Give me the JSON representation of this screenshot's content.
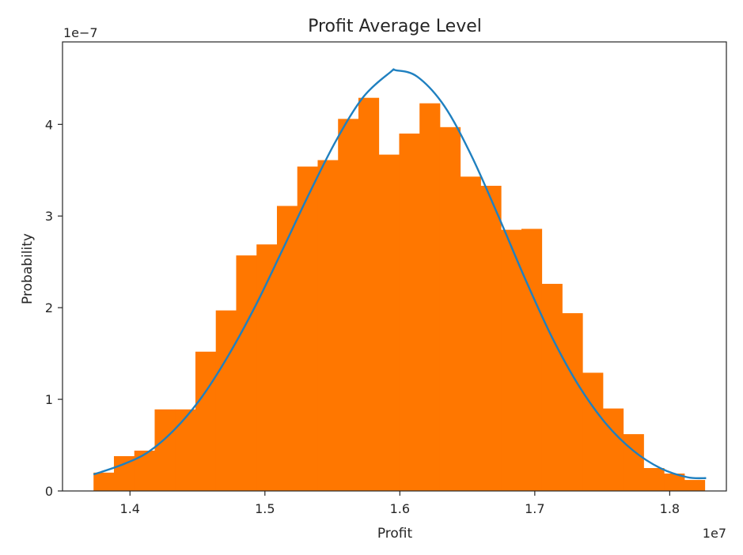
{
  "chart_data": {
    "type": "bar",
    "title": "Profit Average Level",
    "xlabel": "Profit",
    "ylabel": "Probability",
    "x_offset_label": "1e7",
    "y_offset_label": "1e−7",
    "x_scale": 10000000,
    "y_scale": 1e-07,
    "xlim": [
      13500000,
      18420000
    ],
    "ylim": [
      0,
      4.9e-07
    ],
    "x_ticks": [
      14000000,
      15000000,
      16000000,
      17000000,
      18000000
    ],
    "x_tick_labels": [
      "1.4",
      "1.5",
      "1.6",
      "1.7",
      "1.8"
    ],
    "y_ticks": [
      0,
      1e-07,
      2e-07,
      3e-07,
      4e-07
    ],
    "y_tick_labels": [
      "0",
      "1",
      "2",
      "3",
      "4"
    ],
    "grid": false,
    "series": [
      {
        "kind": "histogram",
        "color": "#ff7700",
        "bin_edges": [
          13730000,
          13881000,
          14032000,
          14183000,
          14334000,
          14485000,
          14636000,
          14787000,
          14938000,
          15089000,
          15240000,
          15391000,
          15542000,
          15693000,
          15844000,
          15995000,
          16146000,
          16297000,
          16448000,
          16599000,
          16750000,
          16901000,
          17052000,
          17203000,
          17354000,
          17505000,
          17656000,
          17807000,
          17958000,
          18109000,
          18260000
        ],
        "values": [
          2e-08,
          3.8e-08,
          4.4e-08,
          8.9e-08,
          8.9e-08,
          1.52e-07,
          1.97e-07,
          2.57e-07,
          2.69e-07,
          3.11e-07,
          3.54e-07,
          3.61e-07,
          4.06e-07,
          4.29e-07,
          3.67e-07,
          3.9e-07,
          4.23e-07,
          3.97e-07,
          3.43e-07,
          3.33e-07,
          2.85e-07,
          2.86e-07,
          2.26e-07,
          1.94e-07,
          1.29e-07,
          9e-08,
          6.2e-08,
          2.5e-08,
          1.9e-08,
          1.2e-08
        ]
      },
      {
        "kind": "line",
        "color": "#1f80c0",
        "x": [
          13730000,
          13930000,
          14130000,
          14330000,
          14530000,
          14730000,
          14930000,
          15130000,
          15330000,
          15530000,
          15730000,
          15930000,
          15972000,
          16130000,
          16330000,
          16530000,
          16730000,
          16930000,
          17130000,
          17330000,
          17530000,
          17730000,
          17930000,
          18130000,
          18270000
        ],
        "y": [
          1.8e-08,
          2.8e-08,
          4.2e-08,
          6.7e-08,
          1.02e-07,
          1.48e-07,
          2.02e-07,
          2.63e-07,
          3.25e-07,
          3.83e-07,
          4.3e-07,
          4.57e-07,
          4.59e-07,
          4.52e-07,
          4.2e-07,
          3.66e-07,
          3e-07,
          2.31e-07,
          1.67e-07,
          1.14e-07,
          7.3e-08,
          4.4e-08,
          2.5e-08,
          1.5e-08,
          1.4e-08
        ]
      }
    ]
  }
}
